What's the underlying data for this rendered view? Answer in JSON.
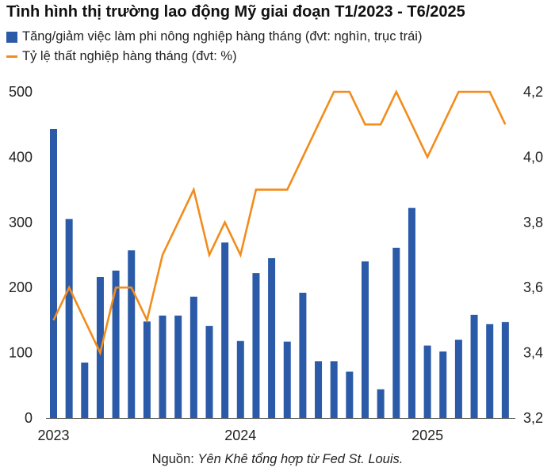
{
  "chart_data": {
    "type": "bar",
    "title": "Tình hình thị trường lao động Mỹ giai đoạn T1/2023 - T6/2025",
    "x_tick_labels": [
      "2023",
      "2024",
      "2025"
    ],
    "x_tick_index": [
      0,
      12,
      24
    ],
    "series": [
      {
        "name": "Tăng/giảm việc làm phi nông nghiệp hàng tháng (đvt: nghìn, trục trái)",
        "kind": "bar",
        "axis": "left",
        "color": "#2b5aa8",
        "values": [
          443,
          305,
          85,
          216,
          226,
          257,
          148,
          157,
          157,
          186,
          141,
          269,
          118,
          222,
          245,
          117,
          192,
          87,
          87,
          71,
          240,
          44,
          261,
          322,
          111,
          102,
          120,
          158,
          144,
          147
        ]
      },
      {
        "name": "Tỷ lệ thất nghiệp hàng tháng (đvt: %)",
        "kind": "line",
        "axis": "right",
        "color": "#f28c1c",
        "values": [
          3.5,
          3.6,
          3.5,
          3.4,
          3.6,
          3.6,
          3.5,
          3.7,
          3.8,
          3.9,
          3.7,
          3.8,
          3.7,
          3.9,
          3.9,
          3.9,
          4.0,
          4.1,
          4.2,
          4.2,
          4.1,
          4.1,
          4.2,
          4.1,
          4.0,
          4.1,
          4.2,
          4.2,
          4.2,
          4.1
        ]
      }
    ],
    "y_left": {
      "min": 0,
      "max": 500,
      "ticks": [
        "0",
        "100",
        "200",
        "300",
        "400",
        "500"
      ]
    },
    "y_right": {
      "min": 3.2,
      "max": 4.2,
      "ticks": [
        "3,2",
        "3,4",
        "3,6",
        "3,8",
        "4,0",
        "4,2"
      ],
      "tick_values": [
        3.2,
        3.4,
        3.6,
        3.8,
        4.0,
        4.2
      ]
    },
    "grid": false,
    "legend_position": "top-left"
  },
  "source": {
    "prefix": "Nguồn: ",
    "text": "Yên Khê tổng hợp từ Fed St. Louis."
  }
}
